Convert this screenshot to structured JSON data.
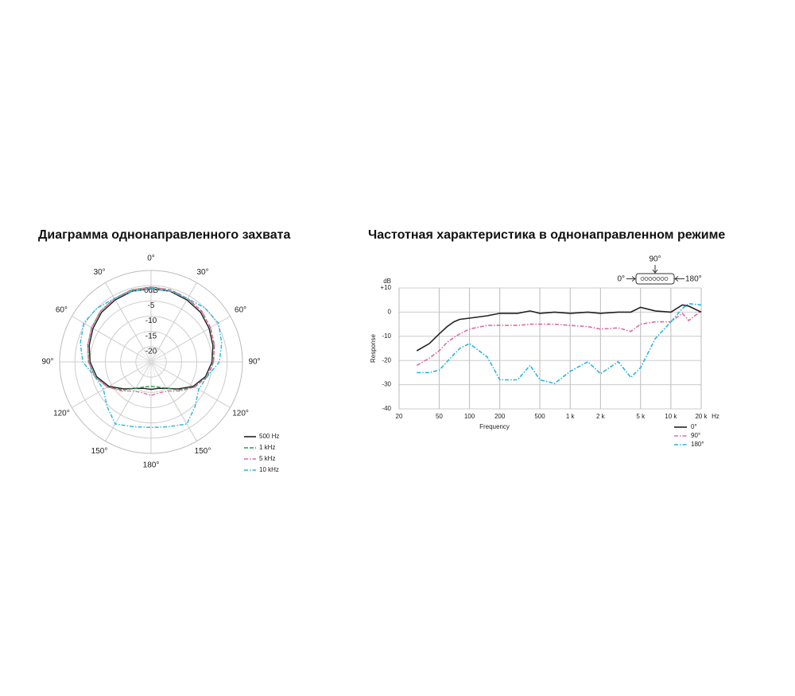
{
  "chart_data": [
    {
      "type": "polar",
      "title": "Диаграмма однонаправленного захвата",
      "theta": [
        0,
        15,
        30,
        45,
        60,
        75,
        90,
        105,
        120,
        135,
        150,
        165,
        180,
        195,
        210,
        225,
        240,
        255,
        270,
        285,
        300,
        315,
        330,
        345
      ],
      "rlim": [
        -25,
        5
      ],
      "rticks": [
        {
          "value": 0,
          "label": "0dB"
        },
        -5,
        -10,
        -15,
        -20
      ],
      "angle_ticks": [
        {
          "value": 0,
          "label": "0°"
        },
        {
          "value": 30,
          "label": "30°"
        },
        {
          "value": 60,
          "label": "60°"
        },
        {
          "value": 90,
          "label": "90°"
        },
        {
          "value": 120,
          "label": "120°"
        },
        {
          "value": 150,
          "label": "150°"
        },
        {
          "value": 180,
          "label": "180°"
        },
        {
          "value": 210,
          "label": "150°"
        },
        {
          "value": 240,
          "label": "120°"
        },
        {
          "value": 270,
          "label": "90°"
        },
        {
          "value": 300,
          "label": "60°"
        },
        {
          "value": 330,
          "label": "30°"
        }
      ],
      "legend": "lower right",
      "series": [
        {
          "name": "500 Hz",
          "color": "#222222",
          "line_style": "solid",
          "values": [
            -1,
            -1,
            -1.5,
            -2,
            -3,
            -4,
            -5,
            -6.5,
            -9,
            -12.5,
            -15,
            -16,
            -16,
            -16,
            -15,
            -12.5,
            -9,
            -6.5,
            -5,
            -4,
            -3,
            -2,
            -1.5,
            -1
          ]
        },
        {
          "name": "1 kHz",
          "color": "#2a9a4a",
          "line_style": "dashed",
          "values": [
            -0.5,
            -0.5,
            -1,
            -1.5,
            -2.5,
            -3.5,
            -4.5,
            -6,
            -8.5,
            -12,
            -15,
            -16.5,
            -17,
            -16.5,
            -15,
            -12,
            -8.5,
            -6,
            -4.5,
            -3.5,
            -2.5,
            -1.5,
            -1,
            -0.5
          ]
        },
        {
          "name": "5 kHz",
          "color": "#e06aa0",
          "line_style": "dash-dot",
          "values": [
            -0.5,
            -0.5,
            -1,
            -1.5,
            -2.5,
            -3.5,
            -4.5,
            -6,
            -8.5,
            -11.5,
            -14,
            -14.5,
            -14,
            -14.5,
            -14,
            -11.5,
            -8.5,
            -6,
            -4.5,
            -3.5,
            -2.5,
            -1.5,
            -1,
            -0.5
          ]
        },
        {
          "name": "10 kHz",
          "color": "#2ab4e0",
          "line_style": "dash-dot",
          "values": [
            -1,
            -1,
            -1,
            0,
            0.5,
            -1,
            -2.6,
            -6,
            -7,
            -4.5,
            -1.5,
            -3,
            -3.5,
            -3,
            -1.5,
            -4.5,
            -7,
            -6,
            -2.6,
            -1,
            0.5,
            0,
            -1,
            -1
          ]
        }
      ]
    },
    {
      "type": "line",
      "title": "Частотная характеристика в однонаправленном режиме",
      "x_label": "Frequency",
      "y_label": "Response",
      "y_unit": "dB",
      "x_unit": "Hz",
      "log_x": true,
      "grid": true,
      "xlim": [
        20,
        20000
      ],
      "xticks": [
        20,
        50,
        100,
        200,
        500,
        {
          "value": 1000,
          "label": "1 k"
        },
        {
          "value": 2000,
          "label": "2 k"
        },
        {
          "value": 5000,
          "label": "5 k"
        },
        {
          "value": 10000,
          "label": "10 k"
        },
        {
          "value": 20000,
          "label": "20 k"
        }
      ],
      "ylim": [
        -40,
        10
      ],
      "yticks": [
        {
          "value": 10,
          "label": "+10"
        },
        0,
        -10,
        -20,
        -30,
        -40
      ],
      "diagram_labels": [
        "90°",
        "0°",
        "180°"
      ],
      "legend": "lower right",
      "x": [
        30,
        40,
        50,
        60,
        70,
        80,
        100,
        150,
        200,
        300,
        400,
        500,
        700,
        1000,
        1500,
        2000,
        3000,
        4000,
        5000,
        7000,
        10000,
        13000,
        15000,
        20000
      ],
      "series": [
        {
          "name": "0°",
          "color": "#222222",
          "line_style": "solid",
          "values": [
            -16,
            -13,
            -9,
            -6,
            -4,
            -3,
            -2.5,
            -1.5,
            -0.5,
            -0.5,
            0.5,
            -0.5,
            0,
            -0.5,
            0,
            -0.5,
            0,
            0,
            2,
            0.5,
            0,
            3,
            2.5,
            0
          ]
        },
        {
          "name": "90°",
          "color": "#e06aa0",
          "line_style": "dash-dot",
          "values": [
            -22,
            -19,
            -16,
            -12.5,
            -10.5,
            -9,
            -7,
            -5.5,
            -5.5,
            -5.5,
            -5,
            -5,
            -5,
            -5.5,
            -6,
            -7,
            -6.5,
            -8,
            -5,
            -4,
            -4,
            -0.5,
            -3.5,
            0.5
          ]
        },
        {
          "name": "180°",
          "color": "#2ab4e0",
          "line_style": "dash-dot",
          "values": [
            -25,
            -25,
            -24,
            -20.5,
            -17.5,
            -15,
            -13,
            -18.5,
            -28,
            -28,
            -22,
            -28,
            -29.5,
            -24.5,
            -20.5,
            -25.5,
            -20.5,
            -27,
            -23,
            -11,
            -4,
            1.5,
            3.5,
            3
          ]
        }
      ]
    }
  ]
}
